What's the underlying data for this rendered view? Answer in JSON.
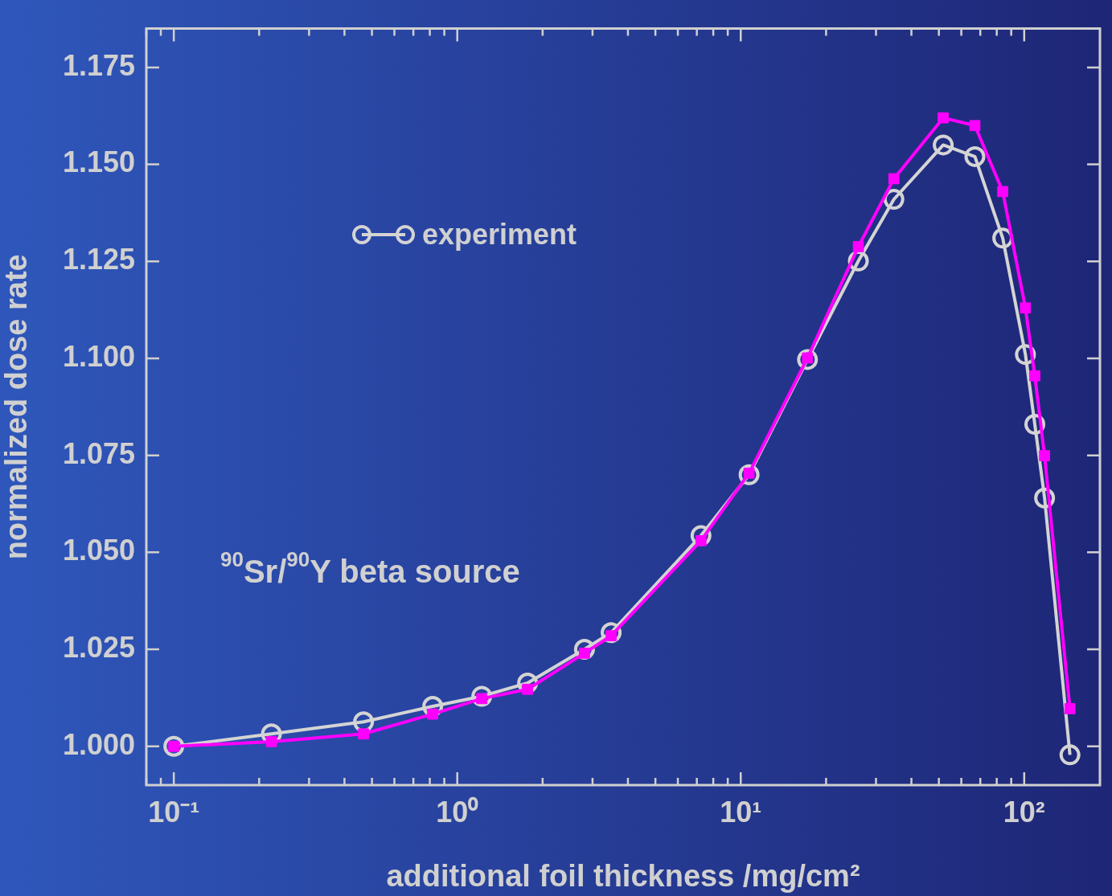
{
  "chart_data": {
    "type": "line",
    "xlabel": "additional foil thickness /mg/cm²",
    "ylabel": "normalized dose rate",
    "annotations": [
      "$^{90}$Sr/$^{90}$Y beta source"
    ],
    "log": "x",
    "legend": "top left",
    "xlim": [
      0.08,
      185
    ],
    "ylim": [
      0.99,
      1.185
    ],
    "xticks": [
      {
        "value": 0.08,
        "label": null
      },
      {
        "value": 0.09,
        "label": null
      },
      {
        "value": 0.1,
        "label": "10⁻¹"
      },
      {
        "value": 0.2,
        "label": null
      },
      {
        "value": 0.3,
        "label": null
      },
      {
        "value": 0.4,
        "label": null
      },
      {
        "value": 0.5,
        "label": null
      },
      {
        "value": 0.6,
        "label": null
      },
      {
        "value": 0.7,
        "label": null
      },
      {
        "value": 0.8,
        "label": null
      },
      {
        "value": 0.9,
        "label": null
      },
      {
        "value": 1,
        "label": "10⁰"
      },
      {
        "value": 2,
        "label": null
      },
      {
        "value": 3,
        "label": null
      },
      {
        "value": 4,
        "label": null
      },
      {
        "value": 5,
        "label": null
      },
      {
        "value": 6,
        "label": null
      },
      {
        "value": 7,
        "label": null
      },
      {
        "value": 8,
        "label": null
      },
      {
        "value": 9,
        "label": null
      },
      {
        "value": 10,
        "label": "10¹"
      },
      {
        "value": 20,
        "label": null
      },
      {
        "value": 30,
        "label": null
      },
      {
        "value": 40,
        "label": null
      },
      {
        "value": 50,
        "label": null
      },
      {
        "value": 60,
        "label": null
      },
      {
        "value": 70,
        "label": null
      },
      {
        "value": 80,
        "label": null
      },
      {
        "value": 90,
        "label": null
      },
      {
        "value": 100,
        "label": "10²"
      }
    ],
    "yticks": [
      {
        "value": 1,
        "label": "1.000"
      },
      {
        "value": 1.025,
        "label": "1.025"
      },
      {
        "value": 1.05,
        "label": "1.050"
      },
      {
        "value": 1.075,
        "label": "1.075"
      },
      {
        "value": 1.1,
        "label": "1.100"
      },
      {
        "value": 1.125,
        "label": "1.125"
      },
      {
        "value": 1.15,
        "label": "1.150"
      },
      {
        "value": 1.175,
        "label": "1.175"
      }
    ],
    "series": [
      {
        "color": "#ff00ff",
        "marker": "square",
        "x": [
          0.1,
          0.221,
          0.467,
          0.819,
          1.22,
          1.77,
          2.81,
          3.49,
          7.24,
          10.7,
          17.2,
          26.0,
          34.7,
          51.8,
          67.0,
          84.0,
          101,
          109,
          118,
          145
        ],
        "values": [
          1.0,
          1.0012,
          1.0032,
          1.0083,
          1.0123,
          1.0147,
          1.024,
          1.0285,
          1.053,
          1.0704,
          1.1001,
          1.1288,
          1.1463,
          1.162,
          1.16,
          1.143,
          1.113,
          1.0955,
          1.0749,
          1.0097
        ]
      },
      {
        "name": "experiment",
        "color": "#d4d4d4",
        "marker": "circle",
        "x": [
          0.1,
          0.221,
          0.467,
          0.819,
          1.22,
          1.77,
          2.81,
          3.49,
          7.24,
          10.7,
          17.2,
          26.0,
          34.7,
          51.8,
          67.0,
          84.0,
          101,
          109,
          118,
          145
        ],
        "values": [
          1.0,
          1.0032,
          1.0063,
          1.0103,
          1.0129,
          1.0163,
          1.025,
          1.0293,
          1.0543,
          1.07,
          1.0997,
          1.1251,
          1.141,
          1.155,
          1.152,
          1.131,
          1.101,
          1.083,
          1.064,
          0.9978
        ]
      }
    ]
  }
}
